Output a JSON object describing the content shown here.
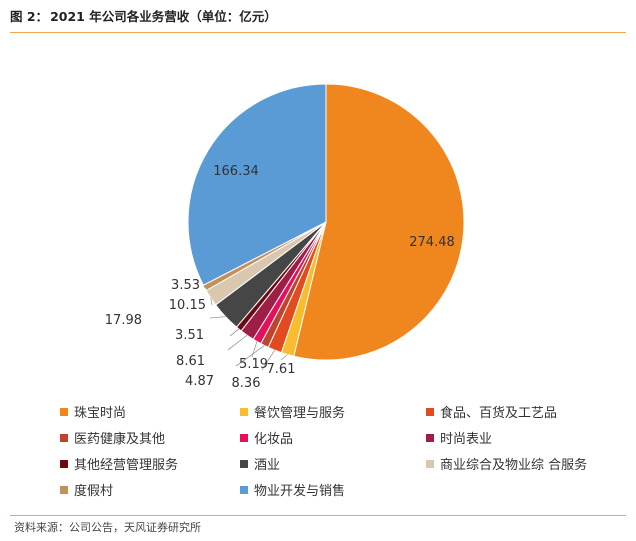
{
  "header": {
    "prefix": "图 2：",
    "title": "2021 年公司各业务营收（单位：亿元）"
  },
  "chart_data": {
    "type": "pie",
    "title": "2021 年公司各业务营收（单位：亿元）",
    "unit": "亿元",
    "start_angle_deg": 0,
    "direction": "clockwise",
    "legend_position": "bottom",
    "slices": [
      {
        "label": "珠宝时尚",
        "value": 274.48,
        "value_text": "274.48",
        "color": "#f0861e"
      },
      {
        "label": "餐饮管理与服务",
        "value": 7.61,
        "value_text": "7.61",
        "color": "#f8bd2c"
      },
      {
        "label": "食品、百货及工艺品",
        "value": 8.36,
        "value_text": "8.36",
        "color": "#e24a1f"
      },
      {
        "label": "医药健康及其他",
        "value": 4.87,
        "value_text": "4.87",
        "color": "#c1432c"
      },
      {
        "label": "化妆品",
        "value": 5.19,
        "value_text": "5.19",
        "color": "#e3105e"
      },
      {
        "label": "时尚表业",
        "value": 8.61,
        "value_text": "8.61",
        "color": "#9f1e46"
      },
      {
        "label": "其他经营管理服务",
        "value": 3.51,
        "value_text": "3.51",
        "color": "#6a0a12"
      },
      {
        "label": "酒业",
        "value": 17.98,
        "value_text": "17.98",
        "color": "#464646"
      },
      {
        "label": "商业综合及物业综 合服务",
        "value": 10.15,
        "value_text": "10.15",
        "color": "#d9c8ae"
      },
      {
        "label": "度假村",
        "value": 3.53,
        "value_text": "3.53",
        "color": "#c2905b"
      },
      {
        "label": "物业开发与销售",
        "value": 166.34,
        "value_text": "166.34",
        "color": "#5b9bd5"
      }
    ]
  },
  "footer": {
    "source": "资料来源：公司公告，天风证券研究所"
  }
}
